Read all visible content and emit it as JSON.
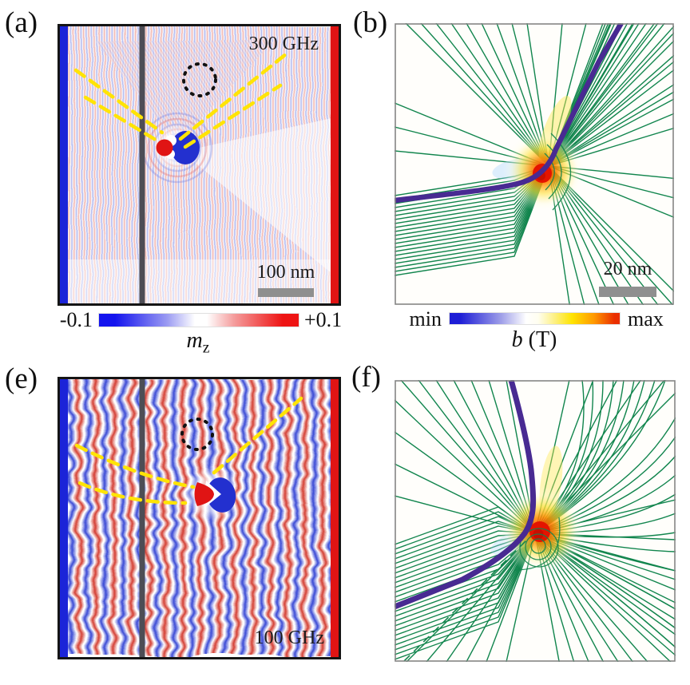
{
  "figure": {
    "panel_a": {
      "label": "(a)",
      "annotation": "300 GHz",
      "scale_bar": "100 nm"
    },
    "panel_b": {
      "label": "(b)",
      "scale_bar": "20 nm"
    },
    "panel_e": {
      "label": "(e)",
      "annotation": "100 GHz"
    },
    "panel_f": {
      "label": "(f)"
    },
    "colorbar_mz": {
      "min": "-0.1",
      "max": "+0.1",
      "symbol": "m",
      "subscript": "z"
    },
    "colorbar_b": {
      "min": "min",
      "max": "max",
      "symbol": "b",
      "unit": " (T)"
    },
    "colors": {
      "wave_red": "#d23529",
      "wave_blue": "#2f3fd3",
      "edge_blue": "#1b24d8",
      "edge_red": "#e01414",
      "ray_green": "#11854d",
      "trajectory_purple": "#482a92",
      "guide_yellow": "#ffe405",
      "hotspot_red": "#e41400",
      "barrier_gray": "#4d4d55",
      "scalebar_gray": "#8f8f8f"
    }
  }
}
